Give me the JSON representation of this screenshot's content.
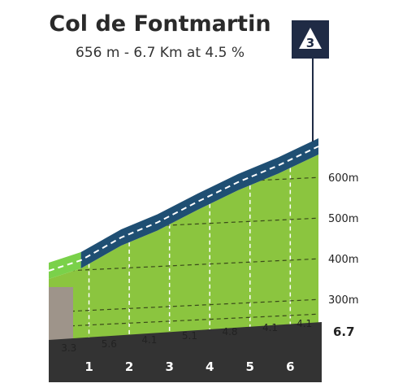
{
  "header": {
    "title": "Col de Fontmartin",
    "subtitle": "656 m - 6.7 Km at 4.5 %"
  },
  "category_badge": {
    "label": "3"
  },
  "colors": {
    "terrain": "#8bc53f",
    "terrain_start": "#7ad14a",
    "road": "#1f4f73",
    "road_dash": "#ffffff",
    "base": "#333333",
    "base_left": "#9e948a",
    "badge": "#1f2b45",
    "grid": "#3a4a1a",
    "text": "#222222"
  },
  "chart_data": {
    "type": "area",
    "title": "Col de Fontmartin",
    "subtitle": "656 m - 6.7 Km at 4.5 %",
    "xlabel": "",
    "ylabel": "",
    "x_unit": "km",
    "y_unit": "m",
    "xlim": [
      0,
      6.7
    ],
    "ylim": [
      200,
      656
    ],
    "profile_km": [
      0,
      0.8,
      1.8,
      2.7,
      3.7,
      4.7,
      5.7,
      6.7
    ],
    "profile_alt": [
      350,
      376,
      432,
      469,
      520,
      568,
      609,
      656
    ],
    "kilometre_markers": [
      "1",
      "2",
      "3",
      "4",
      "5",
      "6"
    ],
    "end_distance_label": "6.7",
    "y_ticks": [
      {
        "value": 300,
        "label": "300m"
      },
      {
        "value": 400,
        "label": "400m"
      },
      {
        "value": 500,
        "label": "500m"
      },
      {
        "value": 600,
        "label": "600m"
      }
    ],
    "segment_gradients": [
      {
        "from_km": 0,
        "to_km": 1,
        "label": "3.3"
      },
      {
        "from_km": 1,
        "to_km": 2,
        "label": "5.6"
      },
      {
        "from_km": 2,
        "to_km": 3,
        "label": "4.1"
      },
      {
        "from_km": 3,
        "to_km": 4,
        "label": "5.1"
      },
      {
        "from_km": 4,
        "to_km": 5,
        "label": "4.8"
      },
      {
        "from_km": 5,
        "to_km": 6,
        "label": "4.1"
      },
      {
        "from_km": 6,
        "to_km": 6.7,
        "label": "4.1"
      }
    ],
    "grid": true,
    "legend": "none"
  }
}
